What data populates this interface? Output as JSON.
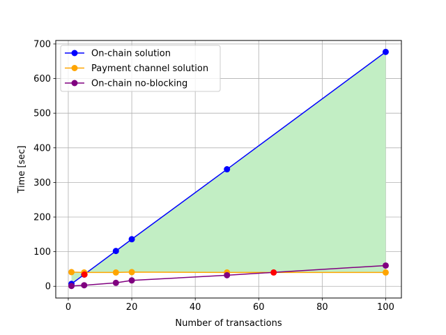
{
  "chart_data": {
    "type": "line",
    "title": "",
    "xlabel": "Number of transactions",
    "ylabel": "Time [sec]",
    "xlim": [
      -3.95,
      104.95
    ],
    "ylim": [
      -33.8,
      710
    ],
    "xticks": [
      0,
      20,
      40,
      60,
      80,
      100
    ],
    "yticks": [
      0,
      100,
      200,
      300,
      400,
      500,
      600,
      700
    ],
    "grid": true,
    "legend_position": "top-left",
    "series": [
      {
        "name": "On-chain solution",
        "color": "#0000ff",
        "x": [
          1,
          5,
          15,
          20,
          50,
          100
        ],
        "y": [
          7,
          34,
          102,
          136,
          338,
          677
        ]
      },
      {
        "name": "Payment channel solution",
        "color": "#ffa500",
        "x": [
          1,
          5,
          15,
          20,
          50,
          100
        ],
        "y": [
          41,
          40,
          40,
          41,
          40,
          40
        ]
      },
      {
        "name": "On-chain no-blocking",
        "color": "#800080",
        "x": [
          1,
          5,
          15,
          20,
          50,
          100
        ],
        "y": [
          1,
          3,
          10,
          17,
          32,
          60
        ]
      }
    ],
    "fill_between": {
      "upper_series": "On-chain solution",
      "lower_series": "Payment channel solution",
      "color": "#c2eec4"
    },
    "highlight_points": [
      {
        "x": 5.1,
        "y": 34,
        "color": "#ff0000"
      },
      {
        "x": 64.7,
        "y": 40,
        "color": "#ff0000"
      }
    ]
  }
}
